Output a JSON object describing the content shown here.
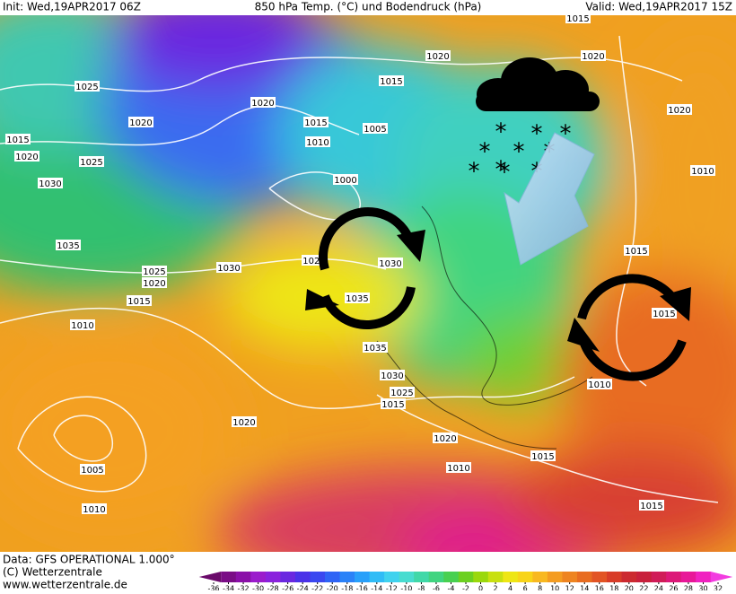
{
  "header": {
    "init": "Init: Wed,19APR2017 06Z",
    "title": "850 hPa Temp. (°C) und Bodendruck (hPa)",
    "valid": "Valid: Wed,19APR2017 15Z"
  },
  "footer": {
    "source": "Data: GFS OPERATIONAL 1.000°",
    "copyright": "(C) Wetterzentrale",
    "url": "www.wetterzentrale.de"
  },
  "isobar_labels": [
    1015,
    1020,
    1020,
    1025,
    1015,
    1020,
    1020,
    1015,
    1005,
    1010,
    1015,
    1020,
    1025,
    1030,
    1000,
    1035,
    1030,
    1025,
    1020,
    1025,
    1030,
    1035,
    1015,
    1010,
    1035,
    1030,
    1025,
    1015,
    1020,
    1020,
    1005,
    1010,
    1015,
    1010,
    1015,
    1020,
    1010,
    1015,
    1010,
    1015
  ],
  "colorbar": {
    "ticks": [
      -36,
      -34,
      -32,
      -30,
      -28,
      -26,
      -24,
      -22,
      -20,
      -18,
      -16,
      -14,
      -12,
      -10,
      -8,
      -6,
      -4,
      -2,
      0,
      2,
      4,
      6,
      8,
      10,
      12,
      14,
      16,
      18,
      20,
      22,
      24,
      26,
      28,
      30,
      32
    ],
    "colors": [
      "#6a0a6a",
      "#7a0d86",
      "#8a10a8",
      "#9b1ccc",
      "#8a22dd",
      "#6a28e0",
      "#4a32e8",
      "#3a48f0",
      "#2f64f5",
      "#2a82f8",
      "#28a0fa",
      "#30bcf6",
      "#40d2ee",
      "#48dcd0",
      "#40d8a8",
      "#40d480",
      "#48d050",
      "#6cd020",
      "#9ad80c",
      "#c8e010",
      "#eee614",
      "#f8d418",
      "#f8b820",
      "#f49c20",
      "#ee8420",
      "#e86c20",
      "#e25424",
      "#d83c28",
      "#cc2a30",
      "#c8203c",
      "#d01c58",
      "#dc1878",
      "#e81898",
      "#f022c0",
      "#f23ce0"
    ]
  }
}
